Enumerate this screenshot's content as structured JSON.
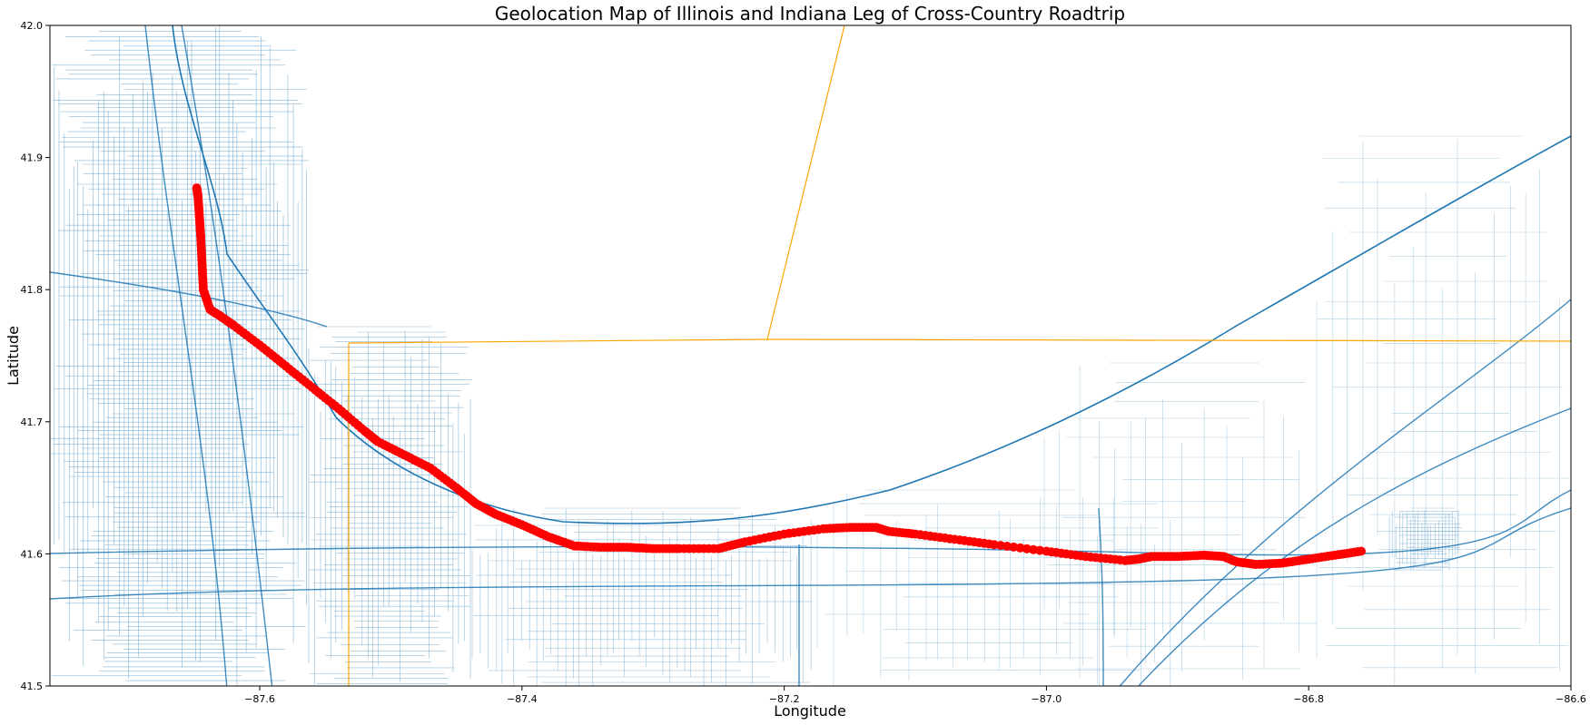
{
  "chart_data": {
    "type": "scatter",
    "title": "Geolocation Map of Illinois and Indiana Leg of Cross-Country Roadtrip",
    "xlabel": "Longitude",
    "ylabel": "Latitude",
    "xlim": [
      -87.76,
      -86.6
    ],
    "ylim": [
      41.5,
      42.0
    ],
    "x_ticks": [
      -87.6,
      -87.4,
      -87.2,
      -87.0,
      -86.8,
      -86.6
    ],
    "x_tick_labels": [
      "−87.6",
      "−87.4",
      "−87.2",
      "−87.0",
      "−86.8",
      "−86.6"
    ],
    "y_ticks": [
      41.5,
      41.6,
      41.7,
      41.8,
      41.9,
      42.0
    ],
    "y_tick_labels": [
      "41.5",
      "41.6",
      "41.7",
      "41.8",
      "41.9",
      "42.0"
    ],
    "grid": false,
    "colors": {
      "route": "#ff0000",
      "roads": "#1f77b4",
      "borders": "#ffa500"
    },
    "series": [
      {
        "color": "#ff0000",
        "x": [
          -87.648,
          -87.647,
          -87.646,
          -87.645,
          -87.644,
          -87.643,
          -87.638,
          -87.63,
          -87.62,
          -87.6,
          -87.58,
          -87.56,
          -87.54,
          -87.52,
          -87.51,
          -87.49,
          -87.47,
          -87.45,
          -87.435,
          -87.42,
          -87.4,
          -87.38,
          -87.36,
          -87.34,
          -87.32,
          -87.3,
          -87.28,
          -87.25,
          -87.23,
          -87.2,
          -87.17,
          -87.15,
          -87.13,
          -87.12,
          -87.1,
          -87.07,
          -87.04,
          -87.0,
          -86.97,
          -86.94,
          -86.93,
          -86.92,
          -86.9,
          -86.88,
          -86.865,
          -86.855,
          -86.84,
          -86.82,
          -86.8,
          -86.78,
          -86.76
        ],
        "y": [
          41.877,
          41.87,
          41.855,
          41.84,
          41.82,
          41.8,
          41.785,
          41.78,
          41.773,
          41.758,
          41.742,
          41.726,
          41.71,
          41.693,
          41.685,
          41.675,
          41.665,
          41.65,
          41.638,
          41.63,
          41.622,
          41.613,
          41.606,
          41.605,
          41.605,
          41.604,
          41.604,
          41.604,
          41.609,
          41.615,
          41.619,
          41.62,
          41.62,
          41.617,
          41.615,
          41.611,
          41.607,
          41.602,
          41.598,
          41.595,
          41.596,
          41.598,
          41.598,
          41.599,
          41.598,
          41.594,
          41.592,
          41.593,
          41.596,
          41.599,
          41.602
        ]
      }
    ]
  }
}
